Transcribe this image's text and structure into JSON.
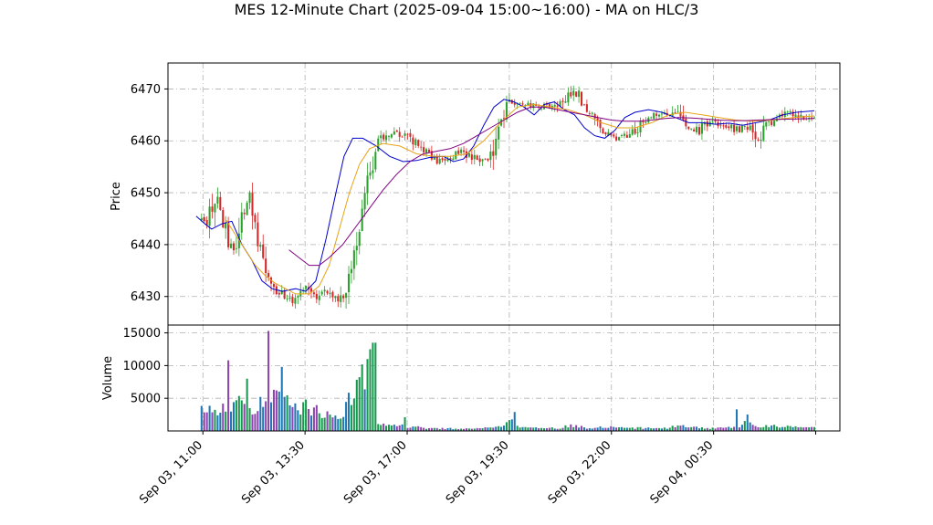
{
  "chart_data": {
    "type": "candlestick",
    "title": "MES 12-Minute Chart (2025-09-04 15:00~16:00) - MA on HLC/3",
    "price_panel": {
      "ylabel": "Price",
      "ylim": [
        6424.5,
        6475
      ],
      "yticks": [
        6430,
        6440,
        6450,
        6460,
        6470
      ],
      "grid": true,
      "colors": {
        "up": "#2ca02c",
        "down": "#d62728",
        "wick": "#444444"
      }
    },
    "volume_panel": {
      "ylabel": "Volume",
      "ylim": [
        0,
        16200
      ],
      "yticks": [
        5000,
        10000,
        15000
      ],
      "ytick_labels": [
        "5000",
        "10000",
        "15000"
      ],
      "grid": true,
      "colors": {
        "up": "#1a9850",
        "down": "#8e44ad",
        "mid": "#1f77b4"
      }
    },
    "x_ticks": [
      {
        "label": "Sep 03, 11:00",
        "pos": 0.052
      },
      {
        "label": "Sep 03, 13:30",
        "pos": 0.204
      },
      {
        "label": "Sep 03, 17:00",
        "pos": 0.356
      },
      {
        "label": "Sep 03, 19:30",
        "pos": 0.508
      },
      {
        "label": "Sep 03, 22:00",
        "pos": 0.66
      },
      {
        "label": "Sep 04, 00:30",
        "pos": 0.812
      },
      {
        "label": "",
        "pos": 0.964
      }
    ],
    "price_path": [
      [
        0.05,
        6445
      ],
      [
        0.058,
        6444
      ],
      [
        0.07,
        6450
      ],
      [
        0.08,
        6445
      ],
      [
        0.09,
        6440
      ],
      [
        0.1,
        6439
      ],
      [
        0.11,
        6445
      ],
      [
        0.12,
        6449
      ],
      [
        0.13,
        6444
      ],
      [
        0.14,
        6438
      ],
      [
        0.15,
        6434
      ],
      [
        0.16,
        6431
      ],
      [
        0.175,
        6430
      ],
      [
        0.19,
        6429
      ],
      [
        0.205,
        6432
      ],
      [
        0.22,
        6430
      ],
      [
        0.24,
        6431
      ],
      [
        0.255,
        6429
      ],
      [
        0.265,
        6432
      ],
      [
        0.28,
        6440
      ],
      [
        0.29,
        6447
      ],
      [
        0.3,
        6453
      ],
      [
        0.31,
        6459
      ],
      [
        0.32,
        6461
      ],
      [
        0.335,
        6462
      ],
      [
        0.35,
        6461
      ],
      [
        0.365,
        6460
      ],
      [
        0.38,
        6458
      ],
      [
        0.4,
        6456
      ],
      [
        0.42,
        6457
      ],
      [
        0.44,
        6458
      ],
      [
        0.46,
        6456
      ],
      [
        0.48,
        6457
      ],
      [
        0.49,
        6462
      ],
      [
        0.5,
        6465
      ],
      [
        0.51,
        6468
      ],
      [
        0.53,
        6467
      ],
      [
        0.55,
        6467
      ],
      [
        0.57,
        6466
      ],
      [
        0.59,
        6468
      ],
      [
        0.605,
        6470
      ],
      [
        0.62,
        6466
      ],
      [
        0.635,
        6465
      ],
      [
        0.65,
        6462
      ],
      [
        0.665,
        6460
      ],
      [
        0.68,
        6461
      ],
      [
        0.695,
        6462
      ],
      [
        0.705,
        6464
      ],
      [
        0.72,
        6465
      ],
      [
        0.745,
        6465
      ],
      [
        0.76,
        6467
      ],
      [
        0.77,
        6463
      ],
      [
        0.79,
        6462
      ],
      [
        0.81,
        6464
      ],
      [
        0.83,
        6463
      ],
      [
        0.85,
        6462
      ],
      [
        0.87,
        6463
      ],
      [
        0.88,
        6460
      ],
      [
        0.89,
        6463
      ],
      [
        0.905,
        6464
      ],
      [
        0.92,
        6466
      ],
      [
        0.935,
        6465
      ],
      [
        0.95,
        6464
      ],
      [
        0.962,
        6465
      ]
    ],
    "volume_path": [
      [
        0.05,
        4200
      ],
      [
        0.06,
        3500
      ],
      [
        0.07,
        2500
      ],
      [
        0.08,
        2800
      ],
      [
        0.09,
        4500
      ],
      [
        0.1,
        4300
      ],
      [
        0.11,
        3800
      ],
      [
        0.12,
        4200
      ],
      [
        0.13,
        3500
      ],
      [
        0.14,
        4000
      ],
      [
        0.15,
        4500
      ],
      [
        0.16,
        5000
      ],
      [
        0.17,
        4500
      ],
      [
        0.18,
        4000
      ],
      [
        0.19,
        4200
      ],
      [
        0.2,
        3500
      ],
      [
        0.21,
        3800
      ],
      [
        0.22,
        3000
      ],
      [
        0.23,
        2800
      ],
      [
        0.24,
        2500
      ],
      [
        0.25,
        2600
      ],
      [
        0.26,
        3000
      ],
      [
        0.27,
        4500
      ],
      [
        0.28,
        6000
      ],
      [
        0.29,
        8000
      ],
      [
        0.3,
        9500
      ],
      [
        0.31,
        1500
      ],
      [
        0.32,
        900
      ],
      [
        0.33,
        800
      ],
      [
        0.34,
        700
      ],
      [
        0.35,
        750
      ],
      [
        0.36,
        600
      ],
      [
        0.4,
        400
      ],
      [
        0.45,
        350
      ],
      [
        0.49,
        500
      ],
      [
        0.5,
        1200
      ],
      [
        0.51,
        1800
      ],
      [
        0.52,
        800
      ],
      [
        0.54,
        500
      ],
      [
        0.58,
        400
      ],
      [
        0.6,
        900
      ],
      [
        0.62,
        500
      ],
      [
        0.66,
        600
      ],
      [
        0.7,
        450
      ],
      [
        0.74,
        400
      ],
      [
        0.76,
        900
      ],
      [
        0.78,
        500
      ],
      [
        0.82,
        450
      ],
      [
        0.85,
        500
      ],
      [
        0.86,
        2500
      ],
      [
        0.87,
        700
      ],
      [
        0.9,
        700
      ],
      [
        0.92,
        800
      ],
      [
        0.94,
        500
      ],
      [
        0.962,
        450
      ]
    ],
    "volume_spikes": [
      [
        0.089,
        10800
      ],
      [
        0.117,
        8000
      ],
      [
        0.15,
        15300
      ],
      [
        0.158,
        6300
      ],
      [
        0.169,
        9800
      ],
      [
        0.205,
        4800
      ],
      [
        0.297,
        11000
      ],
      [
        0.302,
        12500
      ],
      [
        0.307,
        13500
      ],
      [
        0.352,
        2100
      ],
      [
        0.515,
        2900
      ],
      [
        0.847,
        3300
      ]
    ],
    "series": [
      {
        "kind": "ma",
        "color": "#0000cc",
        "start": 0.042,
        "points": [
          [
            0.042,
            6445.5
          ],
          [
            0.055,
            6444
          ],
          [
            0.065,
            6443
          ],
          [
            0.08,
            6444
          ],
          [
            0.095,
            6444.5
          ],
          [
            0.11,
            6440
          ],
          [
            0.125,
            6437
          ],
          [
            0.14,
            6433
          ],
          [
            0.155,
            6431.5
          ],
          [
            0.17,
            6431
          ],
          [
            0.19,
            6431.5
          ],
          [
            0.205,
            6431
          ],
          [
            0.22,
            6433
          ],
          [
            0.235,
            6441
          ],
          [
            0.25,
            6450
          ],
          [
            0.262,
            6457
          ],
          [
            0.275,
            6460.5
          ],
          [
            0.29,
            6460.5
          ],
          [
            0.31,
            6459
          ],
          [
            0.33,
            6457
          ],
          [
            0.35,
            6456
          ],
          [
            0.37,
            6456.2
          ],
          [
            0.39,
            6456.8
          ],
          [
            0.41,
            6457
          ],
          [
            0.425,
            6456
          ],
          [
            0.44,
            6456.5
          ],
          [
            0.455,
            6459
          ],
          [
            0.47,
            6463
          ],
          [
            0.485,
            6466.5
          ],
          [
            0.5,
            6468
          ],
          [
            0.515,
            6467.5
          ],
          [
            0.53,
            6466.5
          ],
          [
            0.545,
            6465
          ],
          [
            0.56,
            6467
          ],
          [
            0.575,
            6467.5
          ],
          [
            0.59,
            6466
          ],
          [
            0.605,
            6465
          ],
          [
            0.62,
            6462.5
          ],
          [
            0.635,
            6461
          ],
          [
            0.65,
            6460.5
          ],
          [
            0.665,
            6462
          ],
          [
            0.68,
            6464.5
          ],
          [
            0.695,
            6465.5
          ],
          [
            0.715,
            6466
          ],
          [
            0.735,
            6465.5
          ],
          [
            0.755,
            6464.5
          ],
          [
            0.775,
            6463.5
          ],
          [
            0.795,
            6463.5
          ],
          [
            0.815,
            6463.2
          ],
          [
            0.835,
            6463.4
          ],
          [
            0.855,
            6463
          ],
          [
            0.875,
            6463.5
          ],
          [
            0.895,
            6464
          ],
          [
            0.915,
            6465
          ],
          [
            0.935,
            6465.5
          ],
          [
            0.962,
            6465.8
          ]
        ]
      },
      {
        "kind": "ma",
        "color": "#e8a317",
        "start": 0.085,
        "points": [
          [
            0.085,
            6445
          ],
          [
            0.1,
            6442
          ],
          [
            0.115,
            6439
          ],
          [
            0.13,
            6436
          ],
          [
            0.145,
            6434
          ],
          [
            0.16,
            6432.5
          ],
          [
            0.175,
            6431.5
          ],
          [
            0.19,
            6430.5
          ],
          [
            0.21,
            6430.5
          ],
          [
            0.225,
            6432
          ],
          [
            0.24,
            6436
          ],
          [
            0.255,
            6443
          ],
          [
            0.27,
            6450
          ],
          [
            0.285,
            6455.5
          ],
          [
            0.3,
            6458.5
          ],
          [
            0.32,
            6459.5
          ],
          [
            0.345,
            6459
          ],
          [
            0.37,
            6457.5
          ],
          [
            0.395,
            6457
          ],
          [
            0.42,
            6457
          ],
          [
            0.445,
            6457.5
          ],
          [
            0.47,
            6460
          ],
          [
            0.495,
            6463.5
          ],
          [
            0.52,
            6466.5
          ],
          [
            0.545,
            6467
          ],
          [
            0.57,
            6466.5
          ],
          [
            0.595,
            6466
          ],
          [
            0.62,
            6465
          ],
          [
            0.645,
            6463.5
          ],
          [
            0.67,
            6462.5
          ],
          [
            0.695,
            6462.5
          ],
          [
            0.72,
            6463.5
          ],
          [
            0.745,
            6465
          ],
          [
            0.77,
            6465.5
          ],
          [
            0.795,
            6465
          ],
          [
            0.82,
            6464.5
          ],
          [
            0.845,
            6464
          ],
          [
            0.87,
            6463.8
          ],
          [
            0.9,
            6464
          ],
          [
            0.93,
            6464.5
          ],
          [
            0.962,
            6464.8
          ]
        ]
      },
      {
        "kind": "ma",
        "color": "#800080",
        "start": 0.18,
        "points": [
          [
            0.18,
            6439
          ],
          [
            0.195,
            6437.5
          ],
          [
            0.21,
            6436
          ],
          [
            0.225,
            6436
          ],
          [
            0.24,
            6437.5
          ],
          [
            0.26,
            6440
          ],
          [
            0.28,
            6443.5
          ],
          [
            0.3,
            6447
          ],
          [
            0.32,
            6450.5
          ],
          [
            0.34,
            6453.5
          ],
          [
            0.36,
            6456
          ],
          [
            0.38,
            6457.5
          ],
          [
            0.4,
            6458
          ],
          [
            0.42,
            6458.5
          ],
          [
            0.44,
            6459.5
          ],
          [
            0.46,
            6461
          ],
          [
            0.48,
            6462.5
          ],
          [
            0.5,
            6464
          ],
          [
            0.52,
            6465.5
          ],
          [
            0.54,
            6466.5
          ],
          [
            0.56,
            6466.5
          ],
          [
            0.58,
            6466
          ],
          [
            0.6,
            6465.5
          ],
          [
            0.62,
            6465
          ],
          [
            0.64,
            6464.5
          ],
          [
            0.66,
            6464
          ],
          [
            0.68,
            6463.8
          ],
          [
            0.7,
            6463.8
          ],
          [
            0.72,
            6464
          ],
          [
            0.74,
            6464.3
          ],
          [
            0.76,
            6464.5
          ],
          [
            0.78,
            6464.4
          ],
          [
            0.8,
            6464.2
          ],
          [
            0.82,
            6464
          ],
          [
            0.84,
            6463.9
          ],
          [
            0.86,
            6463.9
          ],
          [
            0.88,
            6464
          ],
          [
            0.9,
            6464.1
          ],
          [
            0.93,
            6464.2
          ],
          [
            0.962,
            6464.3
          ]
        ]
      }
    ]
  }
}
